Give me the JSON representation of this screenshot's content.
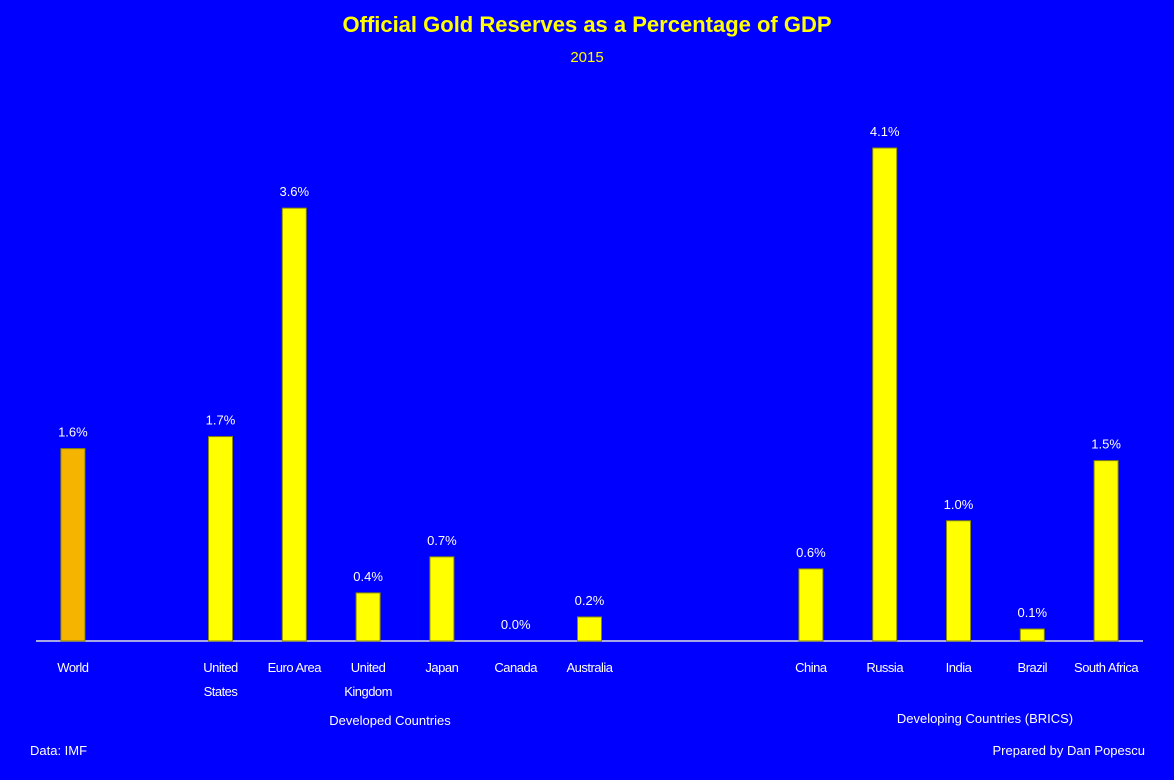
{
  "chart_data": {
    "type": "bar",
    "title": "Official Gold Reserves as a Percentage of GDP",
    "subtitle": "2015",
    "categories": [
      "World",
      null,
      "United States",
      "Euro Area",
      "United Kingdom",
      "Japan",
      "Canada",
      "Australia",
      null,
      null,
      "China",
      "Russia",
      "India",
      "Brazil",
      "South Africa"
    ],
    "values": [
      1.6,
      null,
      1.7,
      3.6,
      0.4,
      0.7,
      0.0,
      0.2,
      null,
      null,
      0.6,
      4.1,
      1.0,
      0.1,
      1.5
    ],
    "value_labels": [
      "1.6%",
      null,
      "1.7%",
      "3.6%",
      "0.4%",
      "0.7%",
      "0.0%",
      "0.2%",
      null,
      null,
      "0.6%",
      "4.1%",
      "1.0%",
      "0.1%",
      "1.5%"
    ],
    "color": "#ffff00",
    "colors": [
      "#f5b400",
      null,
      "#ffff00",
      "#ffff00",
      "#ffff00",
      "#ffff00",
      "#ffff00",
      "#ffff00",
      null,
      null,
      "#ffff00",
      "#ffff00",
      "#ffff00",
      "#ffff00",
      "#ffff00"
    ],
    "group_labels": [
      "Developed Countries",
      "Developing Countries (BRICS)"
    ],
    "source": "Data: IMF",
    "credit": "Prepared by Dan Popescu"
  }
}
